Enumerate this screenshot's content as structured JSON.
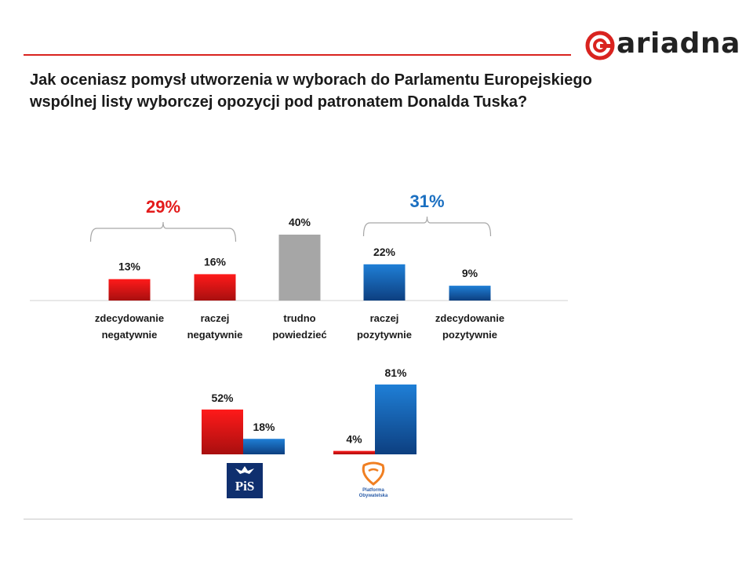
{
  "brand": {
    "name": "ariadna",
    "color": "#d9231f"
  },
  "question": {
    "line1": "Jak oceniasz pomysł utworzenia w wyborach do Parlamentu Europejskiego",
    "line2": "wspólnej listy wyborczej opozycji pod patronatem Donalda Tuska?"
  },
  "colors": {
    "negative": "#e31b1b",
    "neutral": "#a6a6a6",
    "positive": "#1a6fc1",
    "bracket": "#a6a6a6"
  },
  "chart_data": [
    {
      "type": "bar",
      "categories": [
        [
          "zdecydowanie",
          "negatywnie"
        ],
        [
          "raczej",
          "negatywnie"
        ],
        [
          "trudno",
          "powiedzieć"
        ],
        [
          "raczej",
          "pozytywnie"
        ],
        [
          "zdecydowanie",
          "pozytywnie"
        ]
      ],
      "values": [
        13,
        16,
        40,
        22,
        9
      ],
      "value_labels": [
        "13%",
        "16%",
        "40%",
        "22%",
        "9%"
      ],
      "bar_colors": [
        "negative",
        "negative",
        "neutral",
        "positive",
        "positive"
      ],
      "brackets": [
        {
          "label": "29%",
          "from": 0,
          "to": 1,
          "color": "negative"
        },
        {
          "label": "31%",
          "from": 3,
          "to": 4,
          "color": "positive"
        }
      ],
      "ylim": [
        0,
        40
      ]
    },
    {
      "type": "bar",
      "groups": [
        {
          "party": "PiS",
          "values": [
            52,
            18
          ],
          "value_labels": [
            "52%",
            "18%"
          ],
          "colors": [
            "negative",
            "positive"
          ]
        },
        {
          "party": "Platforma Obywatelska",
          "values": [
            4,
            81
          ],
          "value_labels": [
            "4%",
            "81%"
          ],
          "colors": [
            "negative",
            "positive"
          ]
        }
      ],
      "ylim": [
        0,
        81
      ]
    }
  ],
  "party_logos": {
    "pis": {
      "text": "PiS"
    },
    "po": {
      "line1": "Platforma",
      "line2": "Obywatelska"
    }
  }
}
